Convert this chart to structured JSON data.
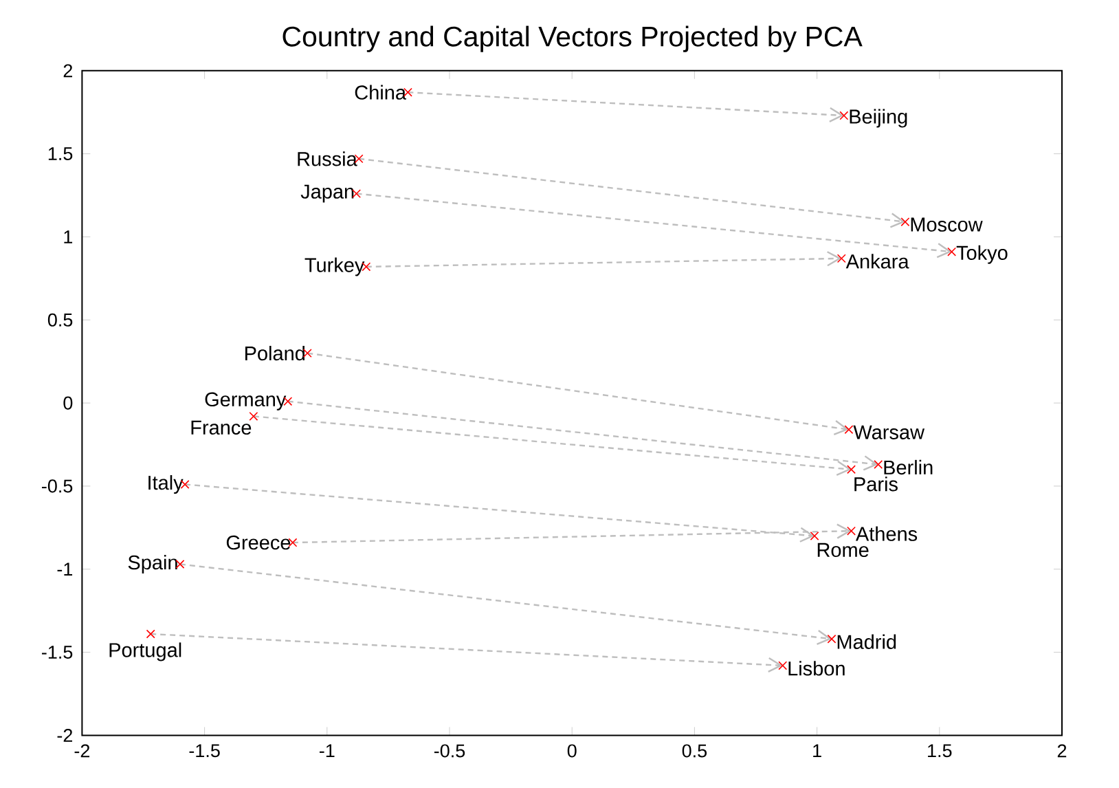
{
  "chart_data": {
    "type": "scatter",
    "title": "Country and Capital Vectors Projected by PCA",
    "xlim": [
      -2,
      2
    ],
    "xticks": [
      -2,
      -1.5,
      -1,
      -0.5,
      0,
      0.5,
      1,
      1.5,
      2
    ],
    "ylim": [
      -2,
      2
    ],
    "yticks": [
      -2,
      -1.5,
      -1,
      -0.5,
      0,
      0.5,
      1,
      1.5,
      2
    ],
    "series": [
      {
        "type": "line",
        "color": "#bebebe",
        "line_style": "dashed",
        "x": [
          -0.67,
          1.11
        ],
        "values": [
          1.87,
          1.73
        ]
      },
      {
        "type": "line",
        "color": "#bebebe",
        "line_style": "dashed",
        "x": [
          -0.87,
          1.36
        ],
        "values": [
          1.47,
          1.09
        ]
      },
      {
        "type": "line",
        "color": "#bebebe",
        "line_style": "dashed",
        "x": [
          -0.88,
          1.55
        ],
        "values": [
          1.26,
          0.91
        ]
      },
      {
        "type": "line",
        "color": "#bebebe",
        "line_style": "dashed",
        "x": [
          -0.84,
          1.1
        ],
        "values": [
          0.82,
          0.87
        ]
      },
      {
        "type": "line",
        "color": "#bebebe",
        "line_style": "dashed",
        "x": [
          -1.08,
          1.13
        ],
        "values": [
          0.3,
          -0.16
        ]
      },
      {
        "type": "line",
        "color": "#bebebe",
        "line_style": "dashed",
        "x": [
          -1.16,
          1.25
        ],
        "values": [
          0.01,
          -0.37
        ]
      },
      {
        "type": "line",
        "color": "#bebebe",
        "line_style": "dashed",
        "x": [
          -1.3,
          1.14
        ],
        "values": [
          -0.08,
          -0.4
        ]
      },
      {
        "type": "line",
        "color": "#bebebe",
        "line_style": "dashed",
        "x": [
          -1.58,
          0.99
        ],
        "values": [
          -0.49,
          -0.8
        ]
      },
      {
        "type": "line",
        "color": "#bebebe",
        "line_style": "dashed",
        "x": [
          -1.14,
          1.14
        ],
        "values": [
          -0.84,
          -0.77
        ]
      },
      {
        "type": "line",
        "color": "#bebebe",
        "line_style": "dashed",
        "x": [
          -1.6,
          1.06
        ],
        "values": [
          -0.97,
          -1.42
        ]
      },
      {
        "type": "line",
        "color": "#bebebe",
        "line_style": "dashed",
        "x": [
          -1.72,
          0.86
        ],
        "values": [
          -1.39,
          -1.58
        ]
      },
      {
        "type": "scatter",
        "color": "#ff0000",
        "marker": "cross",
        "x": [
          -0.67,
          1.11,
          -0.87,
          1.36,
          -0.88,
          1.55,
          -0.84,
          1.1,
          -1.08,
          1.13,
          -1.16,
          1.25,
          -1.3,
          1.14,
          -1.58,
          0.99,
          -1.14,
          1.14,
          -1.6,
          1.06,
          -1.72,
          0.86
        ],
        "values": [
          1.87,
          1.73,
          1.47,
          1.09,
          1.26,
          0.91,
          0.82,
          0.87,
          0.3,
          -0.16,
          0.01,
          -0.37,
          -0.08,
          -0.4,
          -0.49,
          -0.8,
          -0.84,
          -0.77,
          -0.97,
          -1.42,
          -1.39,
          -1.58
        ]
      }
    ],
    "annotations": [
      {
        "text": "China",
        "x": -0.67,
        "y": 1.87
      },
      {
        "text": "Beijing",
        "x": 1.11,
        "y": 1.73
      },
      {
        "text": "Russia",
        "x": -0.87,
        "y": 1.47
      },
      {
        "text": "Moscow",
        "x": 1.36,
        "y": 1.09
      },
      {
        "text": "Japan",
        "x": -0.88,
        "y": 1.26
      },
      {
        "text": "Tokyo",
        "x": 1.55,
        "y": 0.91
      },
      {
        "text": "Turkey",
        "x": -0.84,
        "y": 0.82
      },
      {
        "text": "Ankara",
        "x": 1.1,
        "y": 0.87
      },
      {
        "text": "Poland",
        "x": -1.08,
        "y": 0.3
      },
      {
        "text": "Warsaw",
        "x": 1.13,
        "y": -0.16
      },
      {
        "text": "Germany",
        "x": -1.16,
        "y": 0.01
      },
      {
        "text": "Berlin",
        "x": 1.25,
        "y": -0.37
      },
      {
        "text": "France",
        "x": -1.3,
        "y": -0.08
      },
      {
        "text": "Paris",
        "x": 1.14,
        "y": -0.4
      },
      {
        "text": "Italy",
        "x": -1.58,
        "y": -0.49
      },
      {
        "text": "Rome",
        "x": 0.99,
        "y": -0.8
      },
      {
        "text": "Greece",
        "x": -1.14,
        "y": -0.84
      },
      {
        "text": "Athens",
        "x": 1.14,
        "y": -0.77
      },
      {
        "text": "Spain",
        "x": -1.6,
        "y": -0.97
      },
      {
        "text": "Madrid",
        "x": 1.06,
        "y": -1.42
      },
      {
        "text": "Portugal",
        "x": -1.72,
        "y": -1.39
      },
      {
        "text": "Lisbon",
        "x": 0.86,
        "y": -1.58
      }
    ]
  }
}
